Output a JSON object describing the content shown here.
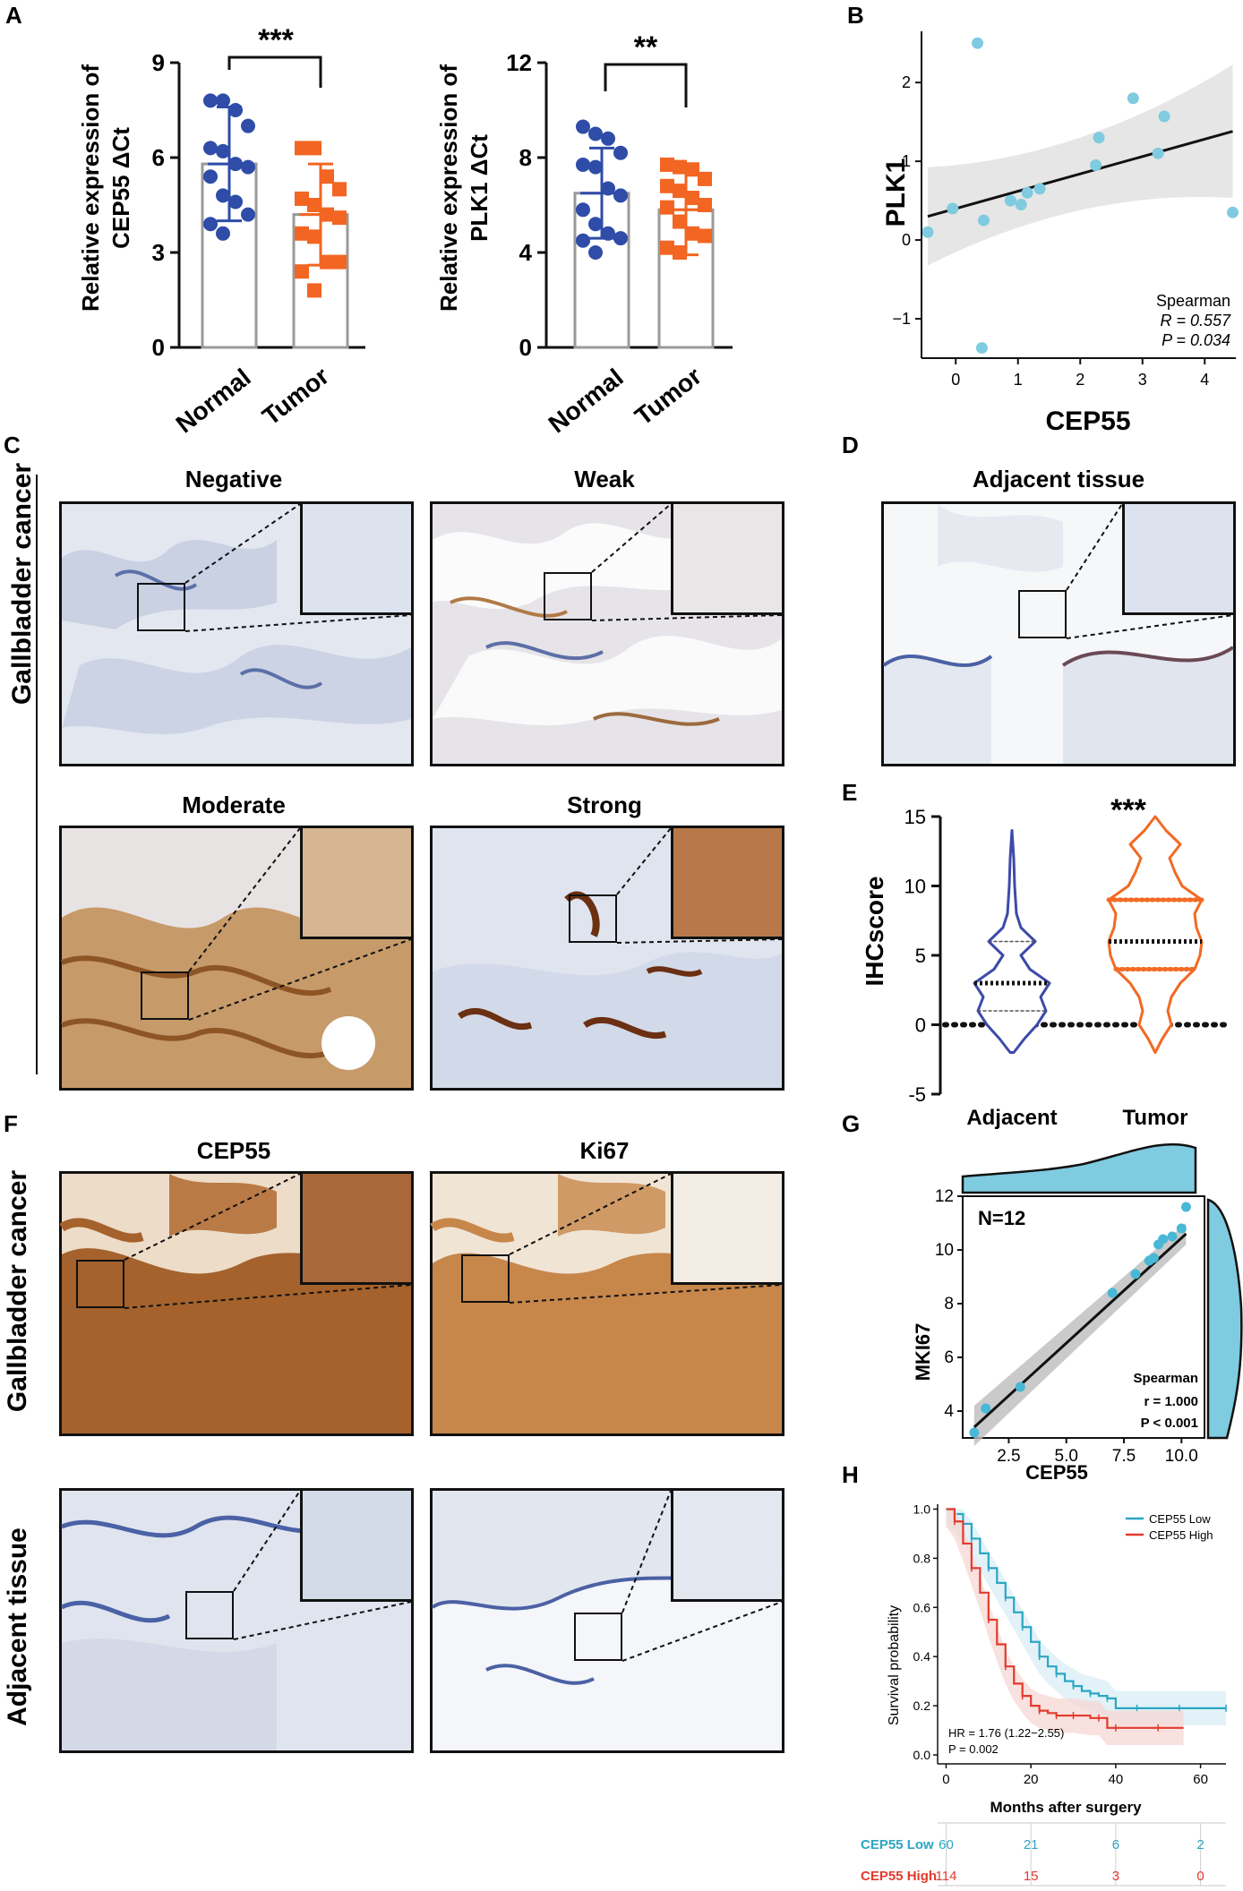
{
  "panels": {
    "A": "A",
    "B": "B",
    "C": "C",
    "D": "D",
    "E": "E",
    "F": "F",
    "G": "G",
    "H": "H"
  },
  "colors": {
    "normal_blue": "#2e4ca8",
    "tumor_orange": "#f26522",
    "light_blue": "#7fcbe0",
    "violin_blue": "#3d4aa8",
    "violin_orange": "#f26a23",
    "ribbon_gray": "#d9d9d9",
    "km_low": "#2ba6c4",
    "km_high": "#e23b2e",
    "ihc_bg": "#dfe5ee",
    "ihc_brown": "#a8662a"
  },
  "panel_A_left": {
    "ylabel_line1": "Relative expression of",
    "ylabel_line2": "CEP55  ΔCt",
    "sig": "***",
    "yticks": [
      "0",
      "3",
      "6",
      "9"
    ],
    "categories": [
      "Normal",
      "Tumor"
    ]
  },
  "panel_A_right": {
    "ylabel_line1": "Relative expression of",
    "ylabel_line2": "PLK1  ΔCt",
    "sig": "**",
    "yticks": [
      "0",
      "4",
      "8",
      "12"
    ],
    "categories": [
      "Normal",
      "Tumor"
    ]
  },
  "panel_B": {
    "xlabel": "CEP55",
    "ylabel": "PLK1",
    "xticks": [
      "0",
      "1",
      "2",
      "3",
      "4"
    ],
    "yticks": [
      "−1",
      "0",
      "1",
      "2"
    ],
    "stat_title": "Spearman",
    "stat_r": "R = 0.557",
    "stat_p": "P = 0.034"
  },
  "panel_C": {
    "side_label": "Gallbladder cancer",
    "titles": [
      "Negative",
      "Weak",
      "Moderate",
      "Strong"
    ]
  },
  "panel_D": {
    "title": "Adjacent tissue"
  },
  "panel_E": {
    "ylabel": "IHCscore",
    "yticks": [
      "-5",
      "0",
      "5",
      "10",
      "15"
    ],
    "categories": [
      "Adjacent",
      "Tumor"
    ],
    "sig": "***"
  },
  "panel_F": {
    "titles": [
      "CEP55",
      "Ki67"
    ],
    "side_label_top": "Gallbladder cancer",
    "side_label_bottom": "Adjacent tissue"
  },
  "panel_G": {
    "n_label": "N=12",
    "xlabel": "CEP55",
    "ylabel": "MKI67",
    "xticks": [
      "2.5",
      "5.0",
      "7.5",
      "10.0"
    ],
    "yticks": [
      "4",
      "6",
      "8",
      "10",
      "12"
    ],
    "stat_title": "Spearman",
    "stat_r": "r = 1.000",
    "stat_p": "P < 0.001"
  },
  "panel_H": {
    "ylabel": "Survival probability",
    "xlabel": "Months after surgery",
    "yticks": [
      "0.0",
      "0.2",
      "0.4",
      "0.6",
      "0.8",
      "1.0"
    ],
    "xticks": [
      "0",
      "20",
      "40",
      "60"
    ],
    "legend_low": "CEP55 Low",
    "legend_high": "CEP55 High",
    "hr": "HR = 1.76 (1.22−2.55)",
    "p": "P = 0.002",
    "risk_low_label": "CEP55 Low",
    "risk_high_label": "CEP55 High",
    "risk_low": [
      "60",
      "21",
      "6",
      "2"
    ],
    "risk_high": [
      "114",
      "15",
      "3",
      "0"
    ]
  },
  "chart_data": [
    {
      "type": "bar",
      "panel": "A-left",
      "categories": [
        "Normal",
        "Tumor"
      ],
      "values": [
        5.8,
        4.2
      ],
      "sd": [
        1.8,
        1.6
      ],
      "ylim": [
        0,
        9
      ],
      "ylabel": "Relative expression of CEP55 ΔCt",
      "points": {
        "Normal": [
          7.8,
          7.8,
          7.5,
          7.0,
          6.3,
          6.2,
          5.8,
          5.7,
          5.4,
          4.8,
          4.6,
          4.2,
          3.9,
          3.6
        ],
        "Tumor": [
          6.3,
          6.3,
          5.4,
          5.0,
          4.7,
          4.5,
          4.2,
          4.1,
          3.6,
          3.5,
          2.7,
          2.7,
          2.4,
          1.8
        ]
      }
    },
    {
      "type": "bar",
      "panel": "A-right",
      "categories": [
        "Normal",
        "Tumor"
      ],
      "values": [
        6.5,
        5.8
      ],
      "sd": [
        1.9,
        1.9
      ],
      "ylim": [
        0,
        12
      ],
      "ylabel": "Relative expression of PLK1 ΔCt",
      "points": {
        "Normal": [
          9.3,
          9.0,
          8.8,
          8.2,
          7.7,
          7.6,
          6.7,
          6.4,
          5.8,
          5.2,
          4.8,
          4.6,
          4.5,
          4.0
        ],
        "Tumor": [
          7.7,
          7.6,
          7.5,
          7.1,
          6.8,
          6.6,
          6.3,
          6.0,
          5.9,
          5.3,
          4.8,
          4.7,
          4.2,
          4.0
        ]
      }
    },
    {
      "type": "scatter",
      "panel": "B",
      "x": [
        -0.45,
        -0.05,
        0.35,
        0.42,
        0.45,
        0.88,
        1.05,
        1.15,
        1.35,
        2.25,
        2.3,
        2.85,
        3.25,
        3.35,
        4.45
      ],
      "y": [
        0.1,
        0.4,
        2.5,
        -1.37,
        0.25,
        0.5,
        0.45,
        0.6,
        0.65,
        0.95,
        1.3,
        1.8,
        1.1,
        1.57,
        0.35
      ],
      "fit": {
        "x": [
          -0.45,
          4.45
        ],
        "y": [
          0.3,
          1.38
        ]
      },
      "xlim": [
        -0.55,
        4.5
      ],
      "ylim": [
        -1.5,
        2.65
      ],
      "xlabel": "CEP55",
      "ylabel": "PLK1"
    },
    {
      "type": "violin",
      "panel": "E",
      "categories": [
        "Adjacent",
        "Tumor"
      ],
      "median": [
        3,
        6
      ],
      "q1": [
        1,
        4
      ],
      "q3": [
        6,
        9
      ],
      "range": [
        [
          -2,
          14
        ],
        [
          -2,
          15
        ]
      ],
      "ylim": [
        -5,
        15
      ],
      "ylabel": "IHCscore"
    },
    {
      "type": "scatter",
      "panel": "G",
      "x": [
        1.0,
        1.5,
        3.0,
        7.0,
        8.0,
        8.6,
        8.8,
        9.0,
        9.2,
        9.6,
        10.0,
        10.2
      ],
      "y": [
        3.2,
        4.1,
        4.9,
        8.4,
        9.1,
        9.6,
        9.7,
        10.2,
        10.4,
        10.5,
        10.8,
        11.6
      ],
      "fit": {
        "x": [
          1.0,
          10.2
        ],
        "y": [
          3.4,
          10.6
        ]
      },
      "xlim": [
        0.5,
        11
      ],
      "ylim": [
        3,
        12
      ],
      "xlabel": "CEP55",
      "ylabel": "MKI67"
    },
    {
      "type": "line",
      "panel": "H",
      "xlabel": "Months after surgery",
      "ylabel": "Survival probability",
      "xlim": [
        -2,
        66
      ],
      "ylim": [
        0,
        1.02
      ],
      "series": [
        {
          "name": "CEP55 Low",
          "x": [
            0,
            2,
            4,
            6,
            8,
            10,
            12,
            14,
            16,
            18,
            20,
            22,
            24,
            26,
            28,
            30,
            32,
            34,
            36,
            38,
            40,
            45,
            50,
            55,
            60,
            66
          ],
          "y": [
            1.0,
            0.98,
            0.94,
            0.88,
            0.82,
            0.76,
            0.7,
            0.64,
            0.58,
            0.52,
            0.46,
            0.4,
            0.36,
            0.33,
            0.3,
            0.28,
            0.26,
            0.25,
            0.24,
            0.23,
            0.19,
            0.19,
            0.19,
            0.19,
            0.19,
            0.19
          ]
        },
        {
          "name": "CEP55 High",
          "x": [
            0,
            2,
            4,
            6,
            8,
            10,
            12,
            14,
            16,
            18,
            20,
            22,
            24,
            26,
            28,
            30,
            34,
            36,
            38,
            40,
            45,
            50,
            56
          ],
          "y": [
            1.0,
            0.95,
            0.86,
            0.76,
            0.66,
            0.55,
            0.45,
            0.36,
            0.29,
            0.24,
            0.2,
            0.18,
            0.17,
            0.16,
            0.16,
            0.16,
            0.15,
            0.15,
            0.11,
            0.11,
            0.11,
            0.11,
            0.11
          ]
        }
      ]
    }
  ]
}
